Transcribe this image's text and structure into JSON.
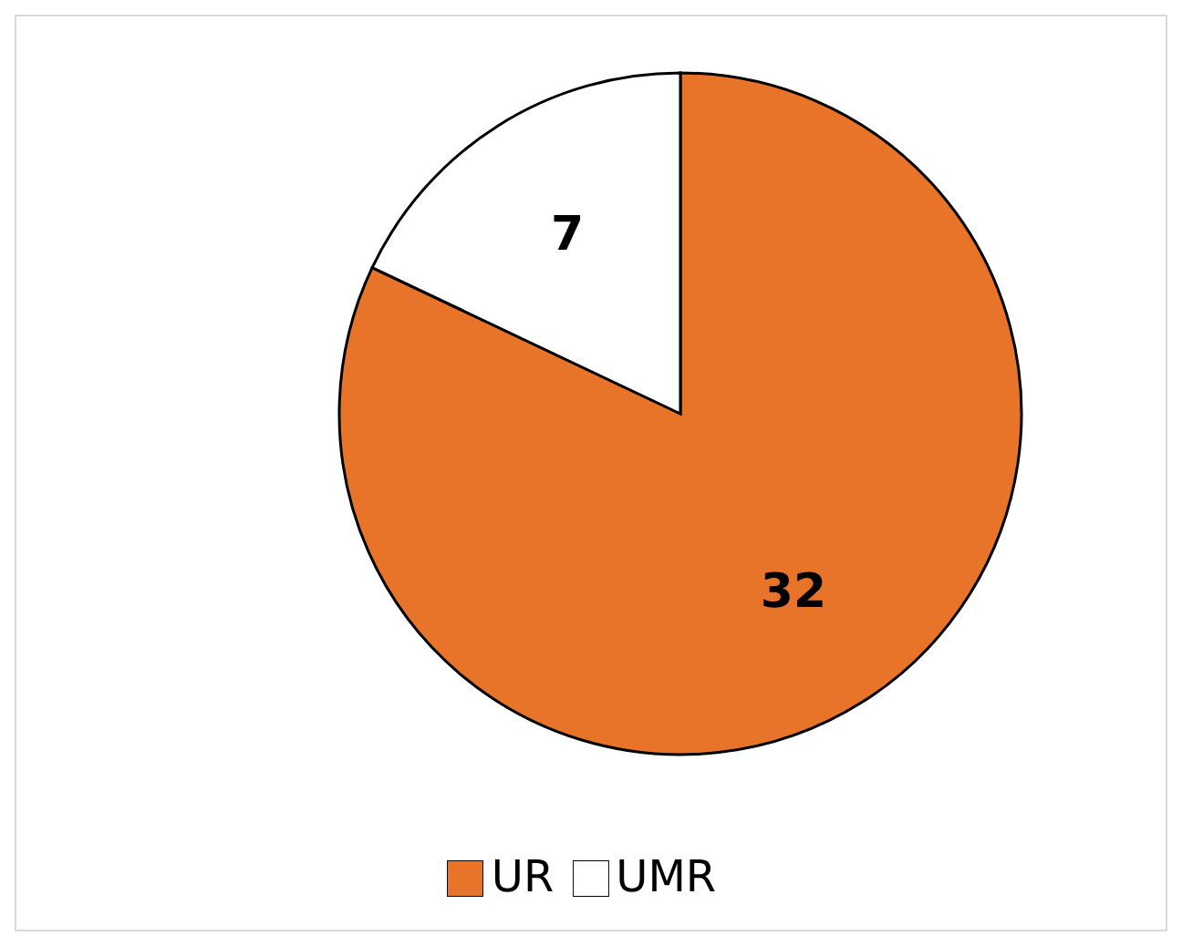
{
  "chart_data": {
    "type": "pie",
    "categories": [
      "UR",
      "UMR"
    ],
    "values": [
      32,
      7
    ],
    "colors": [
      "#e8742a",
      "#ffffff"
    ],
    "data_labels": true,
    "legend": "bottom"
  }
}
